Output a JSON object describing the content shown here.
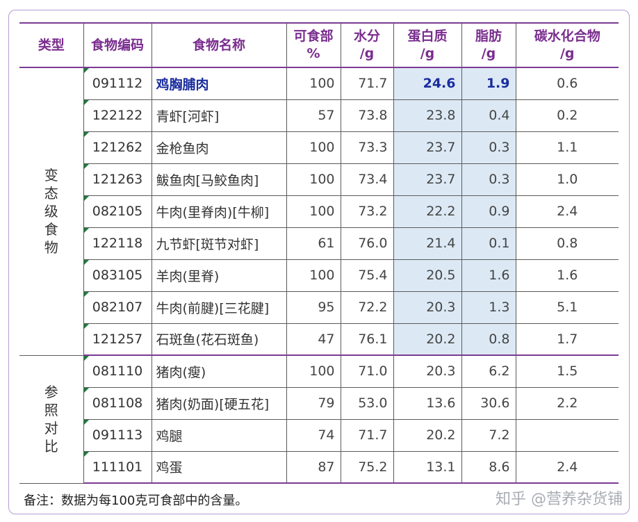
{
  "table": {
    "headers": [
      [
        "类型"
      ],
      [
        "食物编码"
      ],
      [
        "食物名称"
      ],
      [
        "可食部",
        "%"
      ],
      [
        "水分",
        "/g"
      ],
      [
        "蛋白质",
        "/g"
      ],
      [
        "脂肪",
        "/g"
      ],
      [
        "碳水化合物",
        "/g"
      ]
    ],
    "groups": [
      {
        "label": "变态级食物",
        "rows": [
          {
            "code": "091112",
            "name": "鸡胸脯肉",
            "edible": "100",
            "water": "71.7",
            "protein": "24.6",
            "fat": "1.9",
            "carb": "0.6"
          },
          {
            "code": "122122",
            "name": "青虾[河虾]",
            "edible": "57",
            "water": "73.8",
            "protein": "23.8",
            "fat": "0.4",
            "carb": "0.2"
          },
          {
            "code": "121262",
            "name": "金枪鱼肉",
            "edible": "100",
            "water": "73.3",
            "protein": "23.7",
            "fat": "0.3",
            "carb": "1.1"
          },
          {
            "code": "121263",
            "name": "鲅鱼肉[马鲛鱼肉]",
            "edible": "100",
            "water": "73.4",
            "protein": "23.7",
            "fat": "0.3",
            "carb": "1.0"
          },
          {
            "code": "082105",
            "name": "牛肉(里脊肉)[牛柳]",
            "edible": "100",
            "water": "73.2",
            "protein": "22.2",
            "fat": "0.9",
            "carb": "2.4"
          },
          {
            "code": "122118",
            "name": "九节虾[斑节对虾]",
            "edible": "61",
            "water": "76.0",
            "protein": "21.4",
            "fat": "0.1",
            "carb": "0.8"
          },
          {
            "code": "083105",
            "name": "羊肉(里脊)",
            "edible": "100",
            "water": "75.4",
            "protein": "20.5",
            "fat": "1.6",
            "carb": "1.6"
          },
          {
            "code": "082107",
            "name": "牛肉(前腱)[三花腱]",
            "edible": "95",
            "water": "72.2",
            "protein": "20.3",
            "fat": "1.3",
            "carb": "5.1"
          },
          {
            "code": "121257",
            "name": "石斑鱼(花石斑鱼)",
            "edible": "47",
            "water": "76.1",
            "protein": "20.2",
            "fat": "0.8",
            "carb": "1.7"
          }
        ]
      },
      {
        "label": "参照对比",
        "rows": [
          {
            "code": "081110",
            "name": "猪肉(瘦)",
            "edible": "100",
            "water": "71.0",
            "protein": "20.3",
            "fat": "6.2",
            "carb": "1.5"
          },
          {
            "code": "081108",
            "name": "猪肉(奶面)[硬五花]",
            "edible": "79",
            "water": "53.0",
            "protein": "13.6",
            "fat": "30.6",
            "carb": "2.2"
          },
          {
            "code": "091113",
            "name": "鸡腿",
            "edible": "74",
            "water": "71.7",
            "protein": "20.2",
            "fat": "7.2",
            "carb": ""
          },
          {
            "code": "111101",
            "name": "鸡蛋",
            "edible": "87",
            "water": "75.2",
            "protein": "13.1",
            "fat": "8.6",
            "carb": "2.4"
          }
        ]
      }
    ]
  },
  "note": "备注：数据为每100克可食部中的含量。",
  "watermark": "知乎 @营养杂货铺",
  "colors": {
    "header_text": "#7a2d8e",
    "highlight_text": "#1a2c9e",
    "highlight_bg": "#dce9f5",
    "rule": "#7a3b92",
    "frame": "#b69bd2"
  }
}
